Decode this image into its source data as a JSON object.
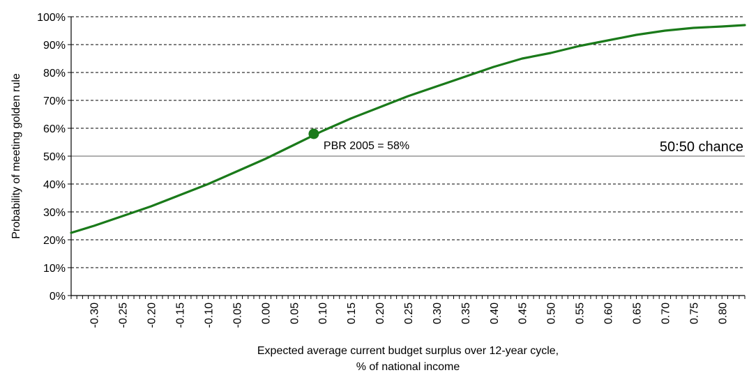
{
  "chart_data": {
    "type": "line",
    "title": "",
    "xlabel_line1": "Expected average current budget surplus over 12-year cycle,",
    "xlabel_line2": "% of national income",
    "ylabel": "Probability of meeting golden rule",
    "xlim": [
      -0.34,
      0.84
    ],
    "ylim": [
      0,
      100
    ],
    "y_ticks": [
      "0%",
      "10%",
      "20%",
      "30%",
      "40%",
      "50%",
      "60%",
      "70%",
      "80%",
      "90%",
      "100%"
    ],
    "x_ticks": [
      "-0.30",
      "-0.25",
      "-0.20",
      "-0.15",
      "-0.10",
      "-0.05",
      "0.00",
      "0.05",
      "0.10",
      "0.15",
      "0.20",
      "0.25",
      "0.30",
      "0.35",
      "0.40",
      "0.45",
      "0.50",
      "0.55",
      "0.60",
      "0.65",
      "0.70",
      "0.75",
      "0.80"
    ],
    "grid": "horizontal-dashed",
    "reference_line": {
      "y": 50,
      "label": "50:50 chance"
    },
    "highlight_point": {
      "x": 0.085,
      "y": 58,
      "label": "PBR 2005 = 58%"
    },
    "series": [
      {
        "color": "#1a7a1a",
        "x": [
          -0.34,
          -0.3,
          -0.25,
          -0.2,
          -0.15,
          -0.1,
          -0.05,
          0.0,
          0.05,
          0.1,
          0.15,
          0.2,
          0.25,
          0.3,
          0.35,
          0.4,
          0.45,
          0.5,
          0.55,
          0.6,
          0.65,
          0.7,
          0.75,
          0.8,
          0.84
        ],
        "y": [
          22.5,
          25,
          28.5,
          32,
          36,
          40,
          44.5,
          49,
          54,
          59,
          63.5,
          67.5,
          71.5,
          75,
          78.5,
          82,
          85,
          87,
          89.5,
          91.5,
          93.5,
          95,
          96,
          96.5,
          97
        ]
      }
    ]
  }
}
